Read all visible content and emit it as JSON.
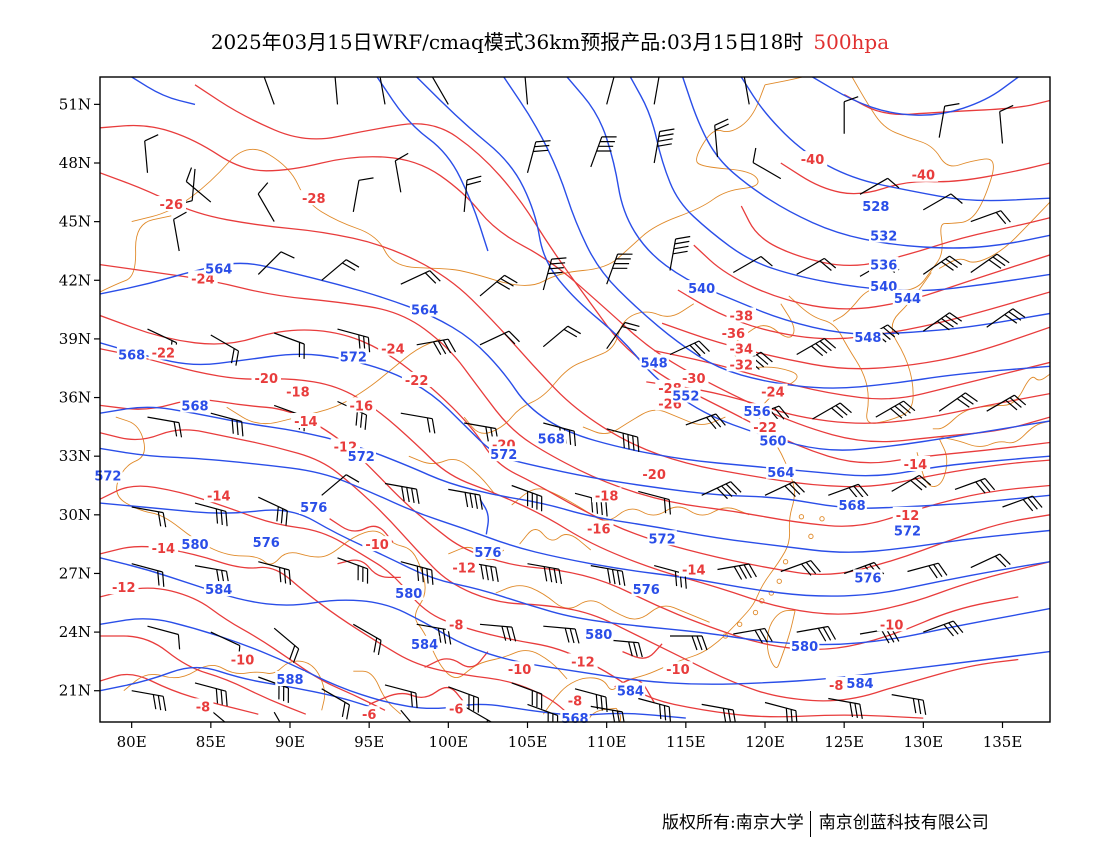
{
  "header": {
    "title": "2025年03月15日WRF/cmaq模式36km预报产品:03月15日18时",
    "level": "500hpa"
  },
  "axes": {
    "lat_ticks": [
      "51N",
      "48N",
      "45N",
      "42N",
      "39N",
      "36N",
      "33N",
      "30N",
      "27N",
      "24N",
      "21N"
    ],
    "lat_values": [
      51,
      48,
      45,
      42,
      39,
      36,
      33,
      30,
      27,
      24,
      21
    ],
    "lon_ticks": [
      "80E",
      "85E",
      "90E",
      "95E",
      "100E",
      "105E",
      "110E",
      "115E",
      "120E",
      "125E",
      "130E",
      "135E"
    ],
    "lon_values": [
      80,
      85,
      90,
      95,
      100,
      105,
      110,
      115,
      120,
      125,
      130,
      135
    ],
    "lon_range": [
      78,
      138
    ],
    "lat_range": [
      19.4,
      52.4
    ]
  },
  "colors": {
    "temperature": "#e83c3c",
    "height": "#2a4ee8",
    "coast": "#e08a2a",
    "barb": "#000000"
  },
  "temperature_labels": [
    {
      "text": "-40",
      "lon": 123.0,
      "lat": 48.2
    },
    {
      "text": "-40",
      "lon": 130.0,
      "lat": 47.4
    },
    {
      "text": "-28",
      "lon": 91.5,
      "lat": 46.2
    },
    {
      "text": "-26",
      "lon": 82.5,
      "lat": 45.9
    },
    {
      "text": "-24",
      "lon": 84.5,
      "lat": 42.1
    },
    {
      "text": "-24",
      "lon": 96.5,
      "lat": 38.5
    },
    {
      "text": "-22",
      "lon": 82.0,
      "lat": 38.3
    },
    {
      "text": "-22",
      "lon": 98.0,
      "lat": 36.9
    },
    {
      "text": "-20",
      "lon": 88.5,
      "lat": 37.0
    },
    {
      "text": "-18",
      "lon": 90.5,
      "lat": 36.3
    },
    {
      "text": "-16",
      "lon": 94.5,
      "lat": 35.6
    },
    {
      "text": "-14",
      "lon": 91.0,
      "lat": 34.8
    },
    {
      "text": "-12",
      "lon": 93.5,
      "lat": 33.5
    },
    {
      "text": "-38",
      "lon": 118.5,
      "lat": 40.2
    },
    {
      "text": "-36",
      "lon": 118.0,
      "lat": 39.3
    },
    {
      "text": "-34",
      "lon": 118.5,
      "lat": 38.5
    },
    {
      "text": "-32",
      "lon": 118.5,
      "lat": 37.7
    },
    {
      "text": "-30",
      "lon": 115.5,
      "lat": 37.0
    },
    {
      "text": "-28",
      "lon": 114.0,
      "lat": 36.5
    },
    {
      "text": "-26",
      "lon": 114.0,
      "lat": 35.7
    },
    {
      "text": "-24",
      "lon": 120.5,
      "lat": 36.3
    },
    {
      "text": "-22",
      "lon": 120.0,
      "lat": 34.5
    },
    {
      "text": "-20",
      "lon": 103.5,
      "lat": 33.6
    },
    {
      "text": "-20",
      "lon": 113.0,
      "lat": 32.1
    },
    {
      "text": "-18",
      "lon": 110.0,
      "lat": 31.0
    },
    {
      "text": "-16",
      "lon": 109.5,
      "lat": 29.3
    },
    {
      "text": "-14",
      "lon": 129.5,
      "lat": 32.6
    },
    {
      "text": "-14",
      "lon": 85.5,
      "lat": 31.0
    },
    {
      "text": "-14",
      "lon": 82.0,
      "lat": 28.3
    },
    {
      "text": "-14",
      "lon": 115.5,
      "lat": 27.2
    },
    {
      "text": "-12",
      "lon": 129.0,
      "lat": 30.0
    },
    {
      "text": "-12",
      "lon": 79.5,
      "lat": 26.3
    },
    {
      "text": "-12",
      "lon": 101.0,
      "lat": 27.3
    },
    {
      "text": "-10",
      "lon": 95.5,
      "lat": 28.5
    },
    {
      "text": "-10",
      "lon": 87.0,
      "lat": 22.6
    },
    {
      "text": "-10",
      "lon": 128.0,
      "lat": 24.4
    },
    {
      "text": "-12",
      "lon": 108.5,
      "lat": 22.5
    },
    {
      "text": "-10",
      "lon": 114.5,
      "lat": 22.1
    },
    {
      "text": "-10",
      "lon": 104.5,
      "lat": 22.1
    },
    {
      "text": "-8",
      "lon": 100.5,
      "lat": 24.4
    },
    {
      "text": "-8",
      "lon": 84.5,
      "lat": 20.2
    },
    {
      "text": "-8",
      "lon": 108.0,
      "lat": 20.5
    },
    {
      "text": "-8",
      "lon": 124.5,
      "lat": 21.3
    },
    {
      "text": "-6",
      "lon": 100.5,
      "lat": 20.1
    },
    {
      "text": "-6",
      "lon": 95.0,
      "lat": 19.8
    }
  ],
  "height_labels": [
    {
      "text": "528",
      "lon": 127.0,
      "lat": 45.8
    },
    {
      "text": "532",
      "lon": 127.5,
      "lat": 44.3
    },
    {
      "text": "536",
      "lon": 127.5,
      "lat": 42.8
    },
    {
      "text": "540",
      "lon": 116.0,
      "lat": 41.6
    },
    {
      "text": "540",
      "lon": 127.5,
      "lat": 41.7
    },
    {
      "text": "544",
      "lon": 129.0,
      "lat": 41.1
    },
    {
      "text": "548",
      "lon": 126.5,
      "lat": 39.1
    },
    {
      "text": "548",
      "lon": 113.0,
      "lat": 37.8
    },
    {
      "text": "552",
      "lon": 115.0,
      "lat": 36.1
    },
    {
      "text": "556",
      "lon": 119.5,
      "lat": 35.3
    },
    {
      "text": "560",
      "lon": 120.5,
      "lat": 33.8
    },
    {
      "text": "564",
      "lon": 85.5,
      "lat": 42.6
    },
    {
      "text": "564",
      "lon": 98.5,
      "lat": 40.5
    },
    {
      "text": "564",
      "lon": 121.0,
      "lat": 32.2
    },
    {
      "text": "568",
      "lon": 80.0,
      "lat": 38.2
    },
    {
      "text": "568",
      "lon": 84.0,
      "lat": 35.6
    },
    {
      "text": "568",
      "lon": 106.5,
      "lat": 33.9
    },
    {
      "text": "568",
      "lon": 125.5,
      "lat": 30.5
    },
    {
      "text": "568",
      "lon": 108.0,
      "lat": 19.6
    },
    {
      "text": "572",
      "lon": 94.0,
      "lat": 38.1
    },
    {
      "text": "572",
      "lon": 94.5,
      "lat": 33.0
    },
    {
      "text": "572",
      "lon": 78.5,
      "lat": 32.0
    },
    {
      "text": "572",
      "lon": 103.5,
      "lat": 33.1
    },
    {
      "text": "572",
      "lon": 113.5,
      "lat": 28.8
    },
    {
      "text": "572",
      "lon": 129.0,
      "lat": 29.2
    },
    {
      "text": "576",
      "lon": 91.5,
      "lat": 30.4
    },
    {
      "text": "576",
      "lon": 88.5,
      "lat": 28.6
    },
    {
      "text": "576",
      "lon": 102.5,
      "lat": 28.1
    },
    {
      "text": "576",
      "lon": 112.5,
      "lat": 26.2
    },
    {
      "text": "576",
      "lon": 126.5,
      "lat": 26.8
    },
    {
      "text": "580",
      "lon": 84.0,
      "lat": 28.5
    },
    {
      "text": "580",
      "lon": 97.5,
      "lat": 26.0
    },
    {
      "text": "580",
      "lon": 109.5,
      "lat": 23.9
    },
    {
      "text": "580",
      "lon": 122.5,
      "lat": 23.3
    },
    {
      "text": "584",
      "lon": 85.5,
      "lat": 26.2
    },
    {
      "text": "584",
      "lon": 98.5,
      "lat": 23.4
    },
    {
      "text": "584",
      "lon": 111.5,
      "lat": 21.0
    },
    {
      "text": "584",
      "lon": 126.0,
      "lat": 21.4
    },
    {
      "text": "588",
      "lon": 90.0,
      "lat": 21.6
    }
  ],
  "copyright": {
    "left": "版权所有:南京大学",
    "right": "南京创蓝科技有限公司"
  }
}
